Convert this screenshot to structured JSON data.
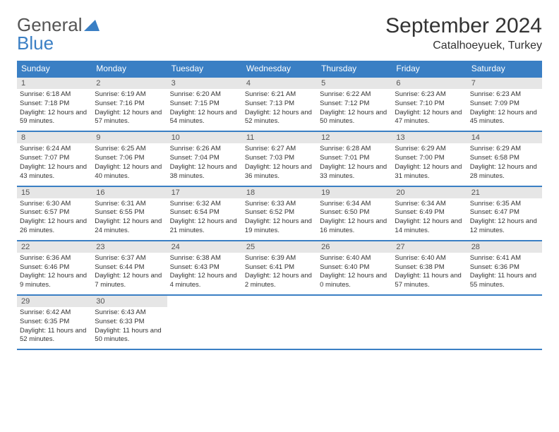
{
  "logo": {
    "general": "General",
    "blue": "Blue"
  },
  "title": "September 2024",
  "location": "Catalhoeyuek, Turkey",
  "colors": {
    "header_bg": "#3a7fc4",
    "daynum_bg": "#e6e6e6",
    "border": "#3a7fc4",
    "text": "#333333",
    "logo_gray": "#555555",
    "logo_blue": "#3a7fc4",
    "background": "#ffffff"
  },
  "typography": {
    "title_fontsize": 30,
    "location_fontsize": 16,
    "header_fontsize": 12,
    "daynum_fontsize": 11,
    "content_fontsize": 9.5,
    "font_family": "Arial"
  },
  "day_headers": [
    "Sunday",
    "Monday",
    "Tuesday",
    "Wednesday",
    "Thursday",
    "Friday",
    "Saturday"
  ],
  "weeks": [
    [
      {
        "num": "1",
        "sunrise": "Sunrise: 6:18 AM",
        "sunset": "Sunset: 7:18 PM",
        "daylight": "Daylight: 12 hours and 59 minutes."
      },
      {
        "num": "2",
        "sunrise": "Sunrise: 6:19 AM",
        "sunset": "Sunset: 7:16 PM",
        "daylight": "Daylight: 12 hours and 57 minutes."
      },
      {
        "num": "3",
        "sunrise": "Sunrise: 6:20 AM",
        "sunset": "Sunset: 7:15 PM",
        "daylight": "Daylight: 12 hours and 54 minutes."
      },
      {
        "num": "4",
        "sunrise": "Sunrise: 6:21 AM",
        "sunset": "Sunset: 7:13 PM",
        "daylight": "Daylight: 12 hours and 52 minutes."
      },
      {
        "num": "5",
        "sunrise": "Sunrise: 6:22 AM",
        "sunset": "Sunset: 7:12 PM",
        "daylight": "Daylight: 12 hours and 50 minutes."
      },
      {
        "num": "6",
        "sunrise": "Sunrise: 6:23 AM",
        "sunset": "Sunset: 7:10 PM",
        "daylight": "Daylight: 12 hours and 47 minutes."
      },
      {
        "num": "7",
        "sunrise": "Sunrise: 6:23 AM",
        "sunset": "Sunset: 7:09 PM",
        "daylight": "Daylight: 12 hours and 45 minutes."
      }
    ],
    [
      {
        "num": "8",
        "sunrise": "Sunrise: 6:24 AM",
        "sunset": "Sunset: 7:07 PM",
        "daylight": "Daylight: 12 hours and 43 minutes."
      },
      {
        "num": "9",
        "sunrise": "Sunrise: 6:25 AM",
        "sunset": "Sunset: 7:06 PM",
        "daylight": "Daylight: 12 hours and 40 minutes."
      },
      {
        "num": "10",
        "sunrise": "Sunrise: 6:26 AM",
        "sunset": "Sunset: 7:04 PM",
        "daylight": "Daylight: 12 hours and 38 minutes."
      },
      {
        "num": "11",
        "sunrise": "Sunrise: 6:27 AM",
        "sunset": "Sunset: 7:03 PM",
        "daylight": "Daylight: 12 hours and 36 minutes."
      },
      {
        "num": "12",
        "sunrise": "Sunrise: 6:28 AM",
        "sunset": "Sunset: 7:01 PM",
        "daylight": "Daylight: 12 hours and 33 minutes."
      },
      {
        "num": "13",
        "sunrise": "Sunrise: 6:29 AM",
        "sunset": "Sunset: 7:00 PM",
        "daylight": "Daylight: 12 hours and 31 minutes."
      },
      {
        "num": "14",
        "sunrise": "Sunrise: 6:29 AM",
        "sunset": "Sunset: 6:58 PM",
        "daylight": "Daylight: 12 hours and 28 minutes."
      }
    ],
    [
      {
        "num": "15",
        "sunrise": "Sunrise: 6:30 AM",
        "sunset": "Sunset: 6:57 PM",
        "daylight": "Daylight: 12 hours and 26 minutes."
      },
      {
        "num": "16",
        "sunrise": "Sunrise: 6:31 AM",
        "sunset": "Sunset: 6:55 PM",
        "daylight": "Daylight: 12 hours and 24 minutes."
      },
      {
        "num": "17",
        "sunrise": "Sunrise: 6:32 AM",
        "sunset": "Sunset: 6:54 PM",
        "daylight": "Daylight: 12 hours and 21 minutes."
      },
      {
        "num": "18",
        "sunrise": "Sunrise: 6:33 AM",
        "sunset": "Sunset: 6:52 PM",
        "daylight": "Daylight: 12 hours and 19 minutes."
      },
      {
        "num": "19",
        "sunrise": "Sunrise: 6:34 AM",
        "sunset": "Sunset: 6:50 PM",
        "daylight": "Daylight: 12 hours and 16 minutes."
      },
      {
        "num": "20",
        "sunrise": "Sunrise: 6:34 AM",
        "sunset": "Sunset: 6:49 PM",
        "daylight": "Daylight: 12 hours and 14 minutes."
      },
      {
        "num": "21",
        "sunrise": "Sunrise: 6:35 AM",
        "sunset": "Sunset: 6:47 PM",
        "daylight": "Daylight: 12 hours and 12 minutes."
      }
    ],
    [
      {
        "num": "22",
        "sunrise": "Sunrise: 6:36 AM",
        "sunset": "Sunset: 6:46 PM",
        "daylight": "Daylight: 12 hours and 9 minutes."
      },
      {
        "num": "23",
        "sunrise": "Sunrise: 6:37 AM",
        "sunset": "Sunset: 6:44 PM",
        "daylight": "Daylight: 12 hours and 7 minutes."
      },
      {
        "num": "24",
        "sunrise": "Sunrise: 6:38 AM",
        "sunset": "Sunset: 6:43 PM",
        "daylight": "Daylight: 12 hours and 4 minutes."
      },
      {
        "num": "25",
        "sunrise": "Sunrise: 6:39 AM",
        "sunset": "Sunset: 6:41 PM",
        "daylight": "Daylight: 12 hours and 2 minutes."
      },
      {
        "num": "26",
        "sunrise": "Sunrise: 6:40 AM",
        "sunset": "Sunset: 6:40 PM",
        "daylight": "Daylight: 12 hours and 0 minutes."
      },
      {
        "num": "27",
        "sunrise": "Sunrise: 6:40 AM",
        "sunset": "Sunset: 6:38 PM",
        "daylight": "Daylight: 11 hours and 57 minutes."
      },
      {
        "num": "28",
        "sunrise": "Sunrise: 6:41 AM",
        "sunset": "Sunset: 6:36 PM",
        "daylight": "Daylight: 11 hours and 55 minutes."
      }
    ],
    [
      {
        "num": "29",
        "sunrise": "Sunrise: 6:42 AM",
        "sunset": "Sunset: 6:35 PM",
        "daylight": "Daylight: 11 hours and 52 minutes."
      },
      {
        "num": "30",
        "sunrise": "Sunrise: 6:43 AM",
        "sunset": "Sunset: 6:33 PM",
        "daylight": "Daylight: 11 hours and 50 minutes."
      },
      null,
      null,
      null,
      null,
      null
    ]
  ]
}
